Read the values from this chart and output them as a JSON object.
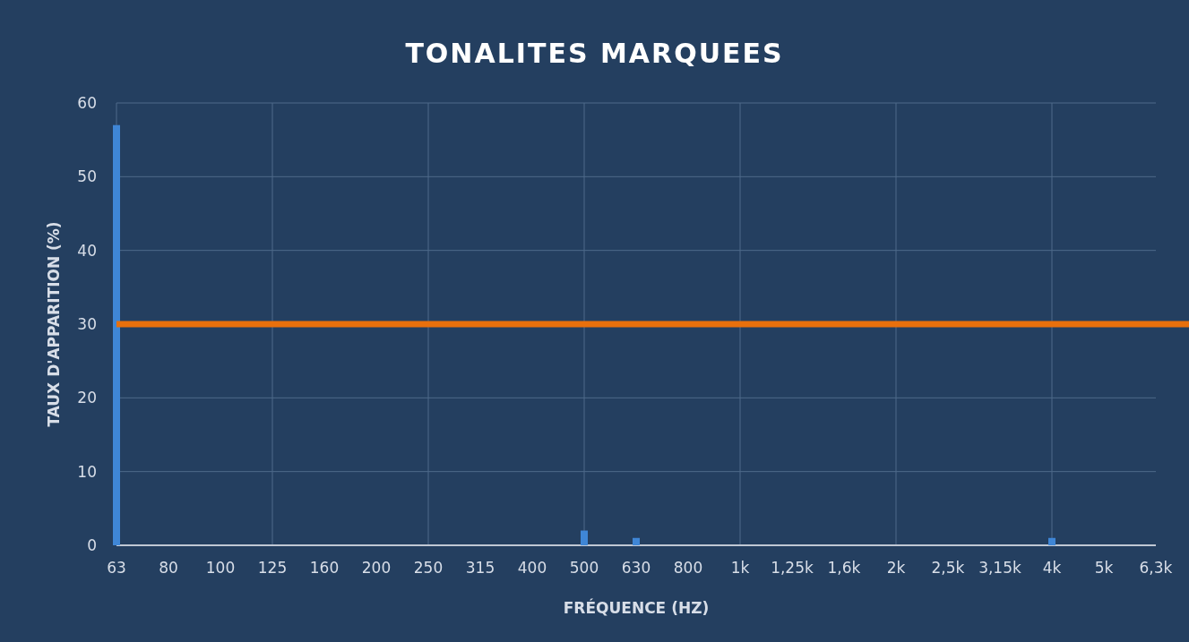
{
  "chart_data": {
    "type": "bar",
    "title": "TONALITES MARQUEES",
    "xlabel": "FRÉQUENCE (HZ)",
    "ylabel": "TAUX D'APPARITION (%)",
    "categories": [
      "63",
      "80",
      "100",
      "125",
      "160",
      "200",
      "250",
      "315",
      "400",
      "500",
      "630",
      "800",
      "1k",
      "1,25k",
      "1,6k",
      "2k",
      "2,5k",
      "3,15k",
      "4k",
      "5k",
      "6,3k"
    ],
    "values": [
      57,
      0,
      0,
      0,
      0,
      0,
      0,
      0,
      0,
      2,
      1,
      0,
      0,
      0,
      0,
      0,
      0,
      0,
      1,
      0,
      0
    ],
    "color": "#3f86d6",
    "ylim": [
      0,
      60
    ],
    "yticks": [
      0,
      10,
      20,
      30,
      40,
      50,
      60
    ],
    "grid": true,
    "ref_lines": [
      {
        "axis": "y",
        "value": 30,
        "color": "#e8700c"
      }
    ]
  }
}
